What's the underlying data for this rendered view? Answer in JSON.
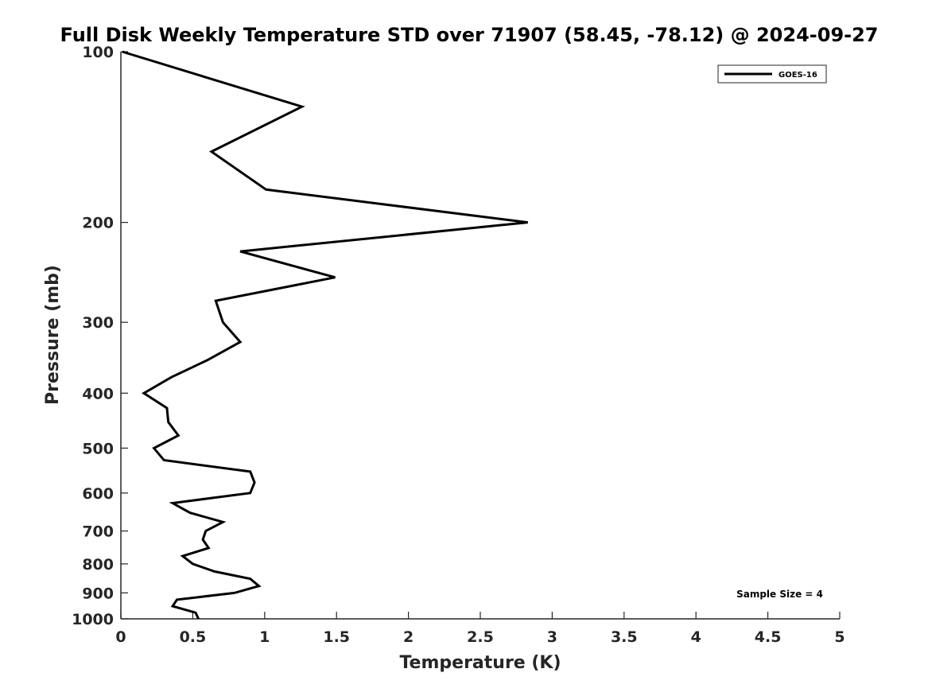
{
  "chart_data": {
    "type": "line",
    "title": "Full Disk Weekly Temperature STD over 71907 (58.45, -78.12) @ 2024-09-27",
    "xlabel": "Temperature (K)",
    "ylabel": "Pressure (mb)",
    "xlim": [
      0,
      5
    ],
    "ylim": [
      1000,
      100
    ],
    "y_scale": "log",
    "y_reversed": true,
    "grid": false,
    "legend_position": "top-right",
    "x_ticks": [
      "0",
      "0.5",
      "1",
      "1.5",
      "2",
      "2.5",
      "3",
      "3.5",
      "4",
      "4.5",
      "5"
    ],
    "x_tick_values": [
      0,
      0.5,
      1,
      1.5,
      2,
      2.5,
      3,
      3.5,
      4,
      4.5,
      5
    ],
    "y_ticks": [
      "100",
      "200",
      "300",
      "400",
      "500",
      "600",
      "700",
      "800",
      "900",
      "1000"
    ],
    "y_tick_values": [
      100,
      200,
      300,
      400,
      500,
      600,
      700,
      800,
      900,
      1000
    ],
    "series": [
      {
        "name": "GOES-16",
        "color": "#000000",
        "points": [
          {
            "t": 0.01,
            "p": 100
          },
          {
            "t": 1.26,
            "p": 125
          },
          {
            "t": 0.63,
            "p": 150
          },
          {
            "t": 1.01,
            "p": 175
          },
          {
            "t": 2.83,
            "p": 200
          },
          {
            "t": 0.83,
            "p": 225
          },
          {
            "t": 1.49,
            "p": 250
          },
          {
            "t": 0.66,
            "p": 275
          },
          {
            "t": 0.71,
            "p": 300
          },
          {
            "t": 0.83,
            "p": 325
          },
          {
            "t": 0.6,
            "p": 350
          },
          {
            "t": 0.35,
            "p": 375
          },
          {
            "t": 0.16,
            "p": 400
          },
          {
            "t": 0.32,
            "p": 425
          },
          {
            "t": 0.33,
            "p": 450
          },
          {
            "t": 0.4,
            "p": 475
          },
          {
            "t": 0.23,
            "p": 500
          },
          {
            "t": 0.3,
            "p": 525
          },
          {
            "t": 0.9,
            "p": 550
          },
          {
            "t": 0.93,
            "p": 575
          },
          {
            "t": 0.9,
            "p": 600
          },
          {
            "t": 0.36,
            "p": 625
          },
          {
            "t": 0.48,
            "p": 650
          },
          {
            "t": 0.71,
            "p": 675
          },
          {
            "t": 0.59,
            "p": 700
          },
          {
            "t": 0.57,
            "p": 725
          },
          {
            "t": 0.61,
            "p": 750
          },
          {
            "t": 0.43,
            "p": 775
          },
          {
            "t": 0.5,
            "p": 800
          },
          {
            "t": 0.65,
            "p": 825
          },
          {
            "t": 0.9,
            "p": 850
          },
          {
            "t": 0.96,
            "p": 875
          },
          {
            "t": 0.79,
            "p": 900
          },
          {
            "t": 0.39,
            "p": 925
          },
          {
            "t": 0.36,
            "p": 950
          },
          {
            "t": 0.52,
            "p": 975
          },
          {
            "t": 0.54,
            "p": 1000
          }
        ]
      }
    ],
    "annotation": "Sample Size = 4"
  }
}
